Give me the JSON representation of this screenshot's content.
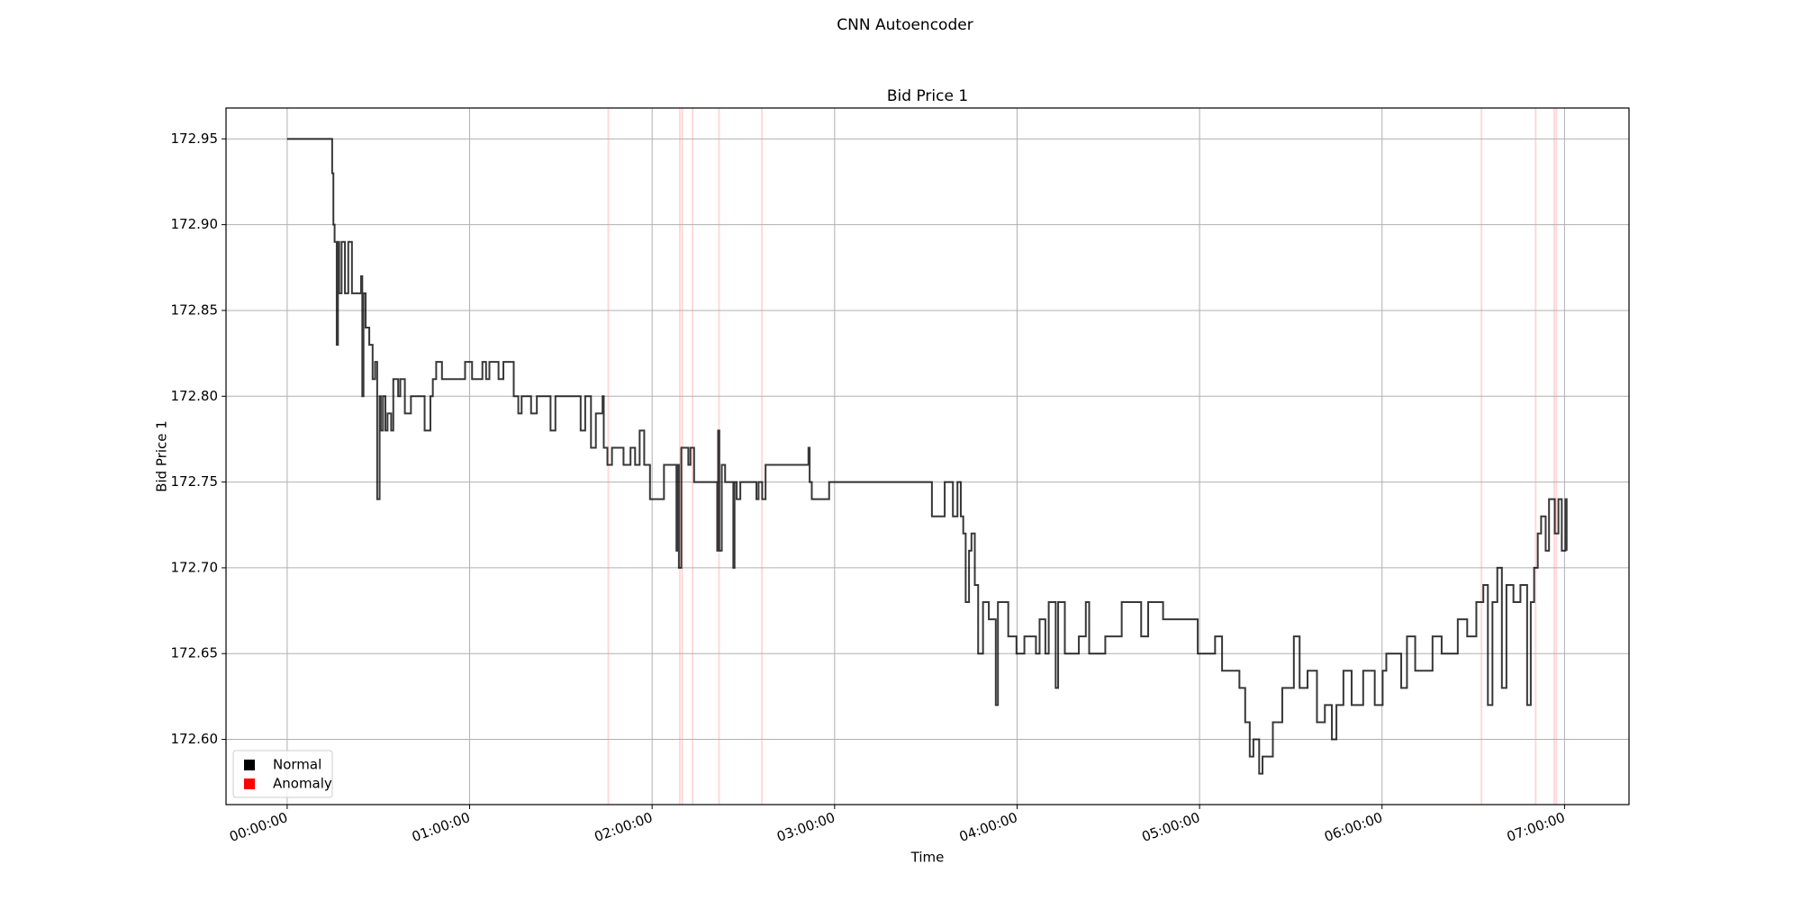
{
  "chart_data": {
    "type": "line",
    "step": "post",
    "title": "CNN Autoencoder",
    "subtitle": "Bid Price 1",
    "xlabel": "Time",
    "ylabel": "Bid Price 1",
    "grid": true,
    "legend": "lower left",
    "xlim": [
      -20.1,
      441.2
    ],
    "ylim": [
      172.562,
      172.968
    ],
    "xticks": [
      {
        "value": 0,
        "label": "00:00:00"
      },
      {
        "value": 60,
        "label": "01:00:00"
      },
      {
        "value": 120,
        "label": "02:00:00"
      },
      {
        "value": 180,
        "label": "03:00:00"
      },
      {
        "value": 240,
        "label": "04:00:00"
      },
      {
        "value": 300,
        "label": "05:00:00"
      },
      {
        "value": 360,
        "label": "06:00:00"
      },
      {
        "value": 420,
        "label": "07:00:00"
      }
    ],
    "yticks": [
      {
        "value": 172.6,
        "label": "172.60"
      },
      172.65,
      {
        "value": 172.7,
        "label": "172.70"
      },
      172.75,
      {
        "value": 172.8,
        "label": "172.80"
      },
      172.85,
      {
        "value": 172.9,
        "label": "172.90"
      },
      172.95
    ],
    "x": [
      0,
      14.8,
      15.2,
      15.6,
      16.3,
      16.7,
      17.1,
      17.9,
      19.0,
      20.1,
      21.3,
      24.3,
      24.7,
      25.1,
      25.8,
      27.0,
      28.1,
      28.9,
      29.6,
      30.4,
      30.8,
      31.5,
      32.3,
      33.0,
      34.2,
      34.9,
      36.5,
      37.2,
      38.7,
      40.7,
      45.2,
      47.1,
      47.9,
      49.0,
      50.9,
      58.5,
      60.8,
      64.2,
      65.4,
      66.5,
      69.5,
      71.1,
      74.5,
      76.0,
      77.1,
      80.2,
      82.1,
      86.6,
      88.2,
      96.5,
      98.0,
      99.9,
      101.5,
      103.7,
      104.1,
      105.3,
      106.8,
      110.6,
      112.9,
      114.4,
      115.9,
      117.4,
      119.3,
      123.9,
      128.0,
      128.4,
      128.8,
      129.6,
      131.9,
      132.6,
      133.8,
      141.4,
      141.7,
      142.1,
      142.9,
      144.0,
      146.7,
      147.1,
      147.8,
      149.0,
      154.3,
      155.0,
      156.2,
      157.3,
      171.4,
      171.8,
      172.5,
      178.2,
      212.0,
      216.2,
      218.9,
      220.4,
      221.5,
      222.3,
      223.1,
      224.2,
      225.0,
      226.1,
      227.2,
      228.8,
      230.7,
      233.0,
      233.7,
      237.1,
      239.8,
      242.4,
      246.2,
      247.4,
      249.3,
      250.4,
      252.7,
      253.5,
      255.7,
      260.3,
      262.6,
      263.7,
      269.0,
      274.4,
      280.8,
      283.1,
      288.0,
      299.4,
      305.1,
      307.4,
      313.1,
      315.0,
      316.5,
      317.7,
      319.6,
      320.7,
      324.1,
      327.2,
      331.0,
      332.9,
      335.5,
      338.6,
      341.2,
      343.5,
      345.0,
      347.3,
      350.0,
      353.8,
      357.6,
      360.2,
      361.4,
      366.3,
      368.2,
      370.9,
      376.6,
      379.6,
      384.9,
      388.0,
      391.0,
      393.3,
      394.8,
      396.3,
      397.9,
      399.4,
      400.9,
      403.2,
      405.5,
      407.7,
      408.9,
      410.0,
      411.2,
      412.3,
      413.8,
      414.9,
      416.8,
      418.0,
      419.1,
      420.3,
      420.7
    ],
    "series": [
      {
        "name": "Normal",
        "color": "#000000",
        "values": [
          172.95,
          172.93,
          172.9,
          172.89,
          172.83,
          172.89,
          172.86,
          172.89,
          172.86,
          172.89,
          172.86,
          172.87,
          172.8,
          172.86,
          172.84,
          172.83,
          172.81,
          172.82,
          172.74,
          172.8,
          172.78,
          172.8,
          172.78,
          172.79,
          172.78,
          172.81,
          172.8,
          172.81,
          172.79,
          172.8,
          172.78,
          172.8,
          172.81,
          172.82,
          172.81,
          172.82,
          172.81,
          172.82,
          172.81,
          172.82,
          172.81,
          172.82,
          172.8,
          172.79,
          172.8,
          172.79,
          172.8,
          172.78,
          172.8,
          172.78,
          172.8,
          172.77,
          172.79,
          172.8,
          172.77,
          172.76,
          172.77,
          172.76,
          172.77,
          172.76,
          172.78,
          172.76,
          172.74,
          172.76,
          172.71,
          172.76,
          172.7,
          172.77,
          172.76,
          172.77,
          172.75,
          172.71,
          172.78,
          172.71,
          172.76,
          172.75,
          172.7,
          172.75,
          172.74,
          172.75,
          172.74,
          172.75,
          172.74,
          172.76,
          172.77,
          172.75,
          172.74,
          172.75,
          172.73,
          172.75,
          172.73,
          172.75,
          172.73,
          172.72,
          172.68,
          172.71,
          172.72,
          172.69,
          172.65,
          172.68,
          172.67,
          172.62,
          172.68,
          172.66,
          172.65,
          172.66,
          172.65,
          172.67,
          172.65,
          172.68,
          172.63,
          172.68,
          172.65,
          172.66,
          172.68,
          172.65,
          172.66,
          172.68,
          172.66,
          172.68,
          172.67,
          172.65,
          172.66,
          172.64,
          172.63,
          172.61,
          172.59,
          172.6,
          172.58,
          172.59,
          172.61,
          172.63,
          172.66,
          172.63,
          172.64,
          172.61,
          172.62,
          172.6,
          172.62,
          172.64,
          172.62,
          172.64,
          172.62,
          172.64,
          172.65,
          172.63,
          172.66,
          172.64,
          172.66,
          172.65,
          172.67,
          172.66,
          172.68,
          172.69,
          172.62,
          172.68,
          172.7,
          172.63,
          172.69,
          172.68,
          172.69,
          172.62,
          172.68,
          172.7,
          172.72,
          172.73,
          172.71,
          172.74,
          172.72,
          172.74,
          172.71,
          172.74,
          172.71
        ]
      }
    ],
    "anomaly": {
      "name": "Anomaly",
      "color": "#ff0000",
      "x": [
        105.6,
        129.1,
        129.9,
        133.3,
        142.0,
        156.1,
        392.7,
        410.5,
        416.6,
        417.3
      ]
    }
  }
}
